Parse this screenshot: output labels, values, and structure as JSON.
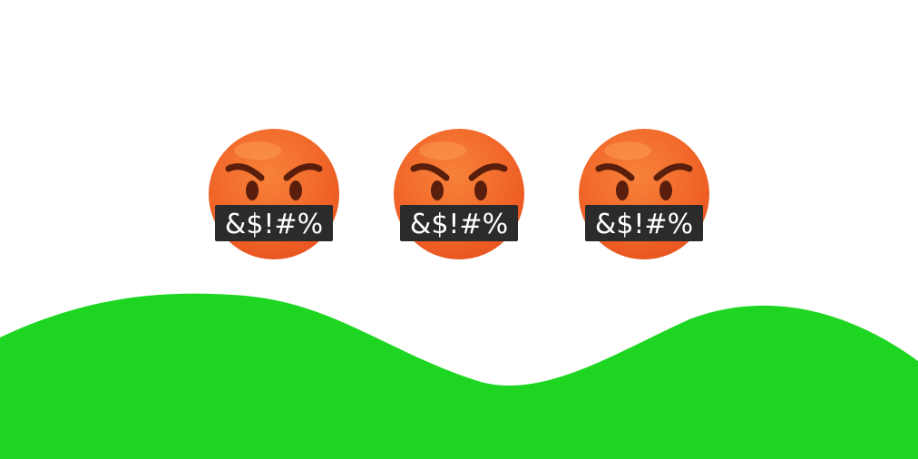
{
  "scene": {
    "background_color": "#ffffff",
    "hill_color": "#1ed622",
    "faces": [
      {
        "icon": "face-with-symbols-on-mouth-icon",
        "censor_text": "&$!#%"
      },
      {
        "icon": "face-with-symbols-on-mouth-icon",
        "censor_text": "&$!#%"
      },
      {
        "icon": "face-with-symbols-on-mouth-icon",
        "censor_text": "&$!#%"
      }
    ],
    "palette": {
      "face_top": "#f7823a",
      "face_mid": "#f26a2b",
      "face_bottom": "#e8531f",
      "face_highlight": "#ffb36b",
      "feature_dark": "#5a1e0c",
      "censor_bar": "#2b2b2b",
      "censor_text": "#ffffff"
    }
  }
}
